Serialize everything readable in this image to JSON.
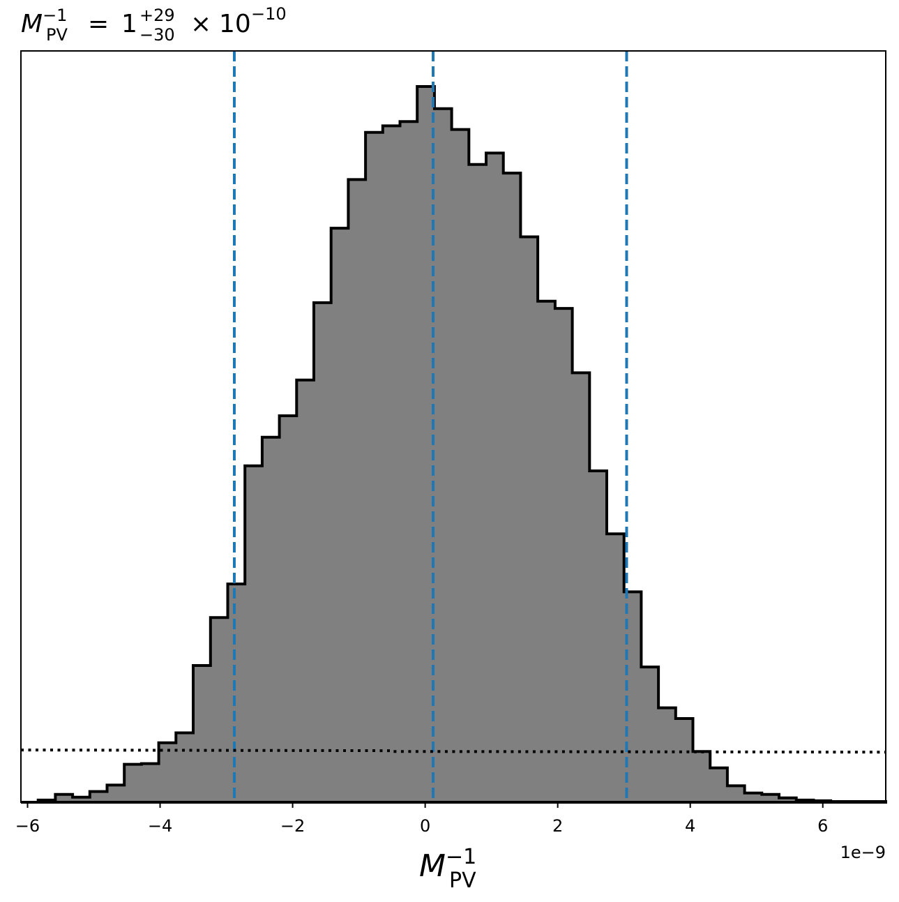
{
  "chart_data": {
    "type": "histogram",
    "title": {
      "symbol": "M",
      "subscript": "PV",
      "superscript": "−1",
      "equals": "=",
      "value": "1",
      "upper_error": "+29",
      "lower_error": "−30",
      "times": "×",
      "exponent_base": "10",
      "exponent": "−10"
    },
    "xlabel": {
      "symbol": "M",
      "subscript": "PV",
      "superscript": "−1"
    },
    "x_offset_label": "1e−9",
    "xlim": [
      -6.1,
      6.95
    ],
    "ylim": [
      0,
      1.0
    ],
    "xticks": [
      -6,
      -4,
      -2,
      0,
      2,
      4,
      6
    ],
    "xtick_labels": [
      "−6",
      "−4",
      "−2",
      "0",
      "2",
      "4",
      "6"
    ],
    "yticks_visible": false,
    "bin_edges": [
      -6.1,
      -5.84,
      -5.58,
      -5.32,
      -5.06,
      -4.8,
      -4.54,
      -4.28,
      -4.02,
      -3.76,
      -3.5,
      -3.24,
      -2.98,
      -2.72,
      -2.46,
      -2.2,
      -1.94,
      -1.68,
      -1.42,
      -1.16,
      -0.9,
      -0.64,
      -0.38,
      -0.12,
      0.14,
      0.4,
      0.66,
      0.92,
      1.18,
      1.44,
      1.7,
      1.96,
      2.22,
      2.48,
      2.74,
      3.0,
      3.26,
      3.52,
      3.78,
      4.04,
      4.3,
      4.56,
      4.82,
      5.08,
      5.34,
      5.6,
      5.86,
      6.12,
      6.38,
      6.64,
      6.95
    ],
    "counts": [
      0.0,
      0.003,
      0.011,
      0.007,
      0.015,
      0.024,
      0.053,
      0.054,
      0.083,
      0.097,
      0.191,
      0.258,
      0.305,
      0.47,
      0.51,
      0.54,
      0.59,
      0.698,
      0.802,
      0.87,
      0.936,
      0.945,
      0.951,
      1.0,
      0.969,
      0.94,
      0.891,
      0.907,
      0.879,
      0.79,
      0.7,
      0.69,
      0.6,
      0.463,
      0.375,
      0.294,
      0.189,
      0.132,
      0.117,
      0.071,
      0.048,
      0.023,
      0.013,
      0.011,
      0.006,
      0.003,
      0.002,
      0.001,
      0.001,
      0.001
    ],
    "fill_color": "#808080",
    "edge_color": "#000000",
    "quantile_lines": [
      -2.88,
      0.12,
      3.04
    ],
    "quantile_line_color": "#1f77b4",
    "prior_line": {
      "style": "dotted",
      "color": "#000000",
      "points": [
        [
          -6.1,
          0.073
        ],
        [
          -0.5,
          0.072
        ],
        [
          -0.5,
          0.071
        ],
        [
          6.95,
          0.07
        ]
      ]
    }
  }
}
